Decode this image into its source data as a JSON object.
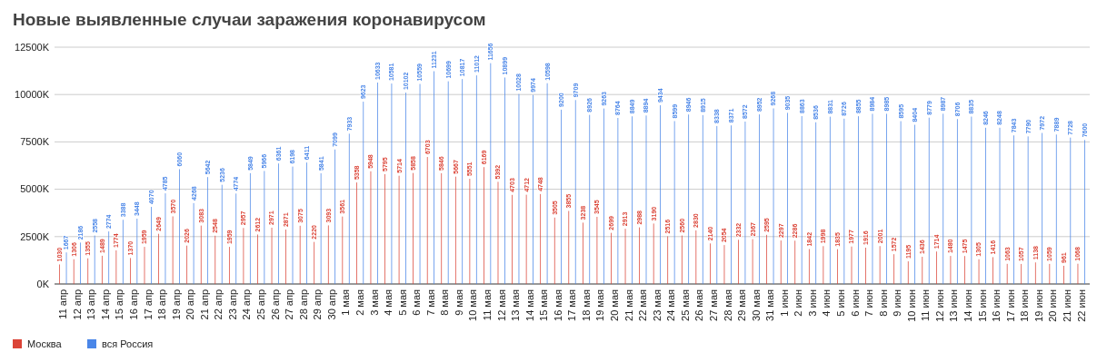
{
  "chart_data": {
    "type": "bar",
    "title": "Новые выявленные случаи заражения коронавирусом",
    "categories": [
      "11 апр",
      "12 апр",
      "13 апр",
      "14 апр",
      "15 апр",
      "16 апр",
      "17 апр",
      "18 апр",
      "19 апр",
      "20 апр",
      "21 апр",
      "22 апр",
      "23 апр",
      "24 апр",
      "25 апр",
      "26 апр",
      "27 апр",
      "28 апр",
      "29 апр",
      "30 апр",
      "1 мая",
      "2 мая",
      "3 мая",
      "4 мая",
      "5 мая",
      "6 мая",
      "7 мая",
      "8 мая",
      "9 мая",
      "10 мая",
      "11 мая",
      "12 мая",
      "13 мая",
      "14 мая",
      "15 мая",
      "16 мая",
      "17 мая",
      "18 мая",
      "19 мая",
      "20 мая",
      "21 мая",
      "22 мая",
      "23 мая",
      "24 мая",
      "25 мая",
      "26 мая",
      "27 мая",
      "28 мая",
      "29 мая",
      "30 мая",
      "31 мая",
      "1 июн",
      "2 июн",
      "3 июн",
      "4 июн",
      "5 июн",
      "6 июн",
      "7 июн",
      "8 июн",
      "9 июн",
      "10 июн",
      "11 июн",
      "12 июн",
      "13 июн",
      "14 июн",
      "15 июн",
      "16 июн",
      "17 июн",
      "18 июн",
      "19 июн",
      "20 июн",
      "21 июн",
      "22 июн"
    ],
    "series": [
      {
        "name": "Москва",
        "color": "#db4437",
        "values": [
          1030,
          1306,
          1355,
          1489,
          1774,
          1370,
          1959,
          2649,
          3570,
          2026,
          3083,
          2548,
          1959,
          2957,
          2612,
          2971,
          2871,
          3075,
          2220,
          3093,
          3561,
          5358,
          5948,
          5795,
          5714,
          5858,
          6703,
          5846,
          5667,
          5551,
          6169,
          5392,
          4703,
          4712,
          4748,
          3505,
          3855,
          3238,
          3545,
          2699,
          2913,
          2988,
          3190,
          2516,
          2560,
          2830,
          2140,
          2054,
          2332,
          2367,
          2595,
          2297,
          2286,
          1842,
          1998,
          1835,
          1977,
          1916,
          2001,
          1572,
          1195,
          1436,
          1714,
          1480,
          1475,
          1305,
          1416,
          1063,
          1057,
          1138,
          1059,
          961,
          1068
        ]
      },
      {
        "name": "вся Россия",
        "color": "#4a86e8",
        "values": [
          1667,
          2186,
          2558,
          2774,
          3388,
          3448,
          4070,
          4785,
          6060,
          4268,
          5642,
          5236,
          4774,
          5849,
          5966,
          6361,
          6198,
          6411,
          5841,
          7099,
          7933,
          9623,
          10633,
          10581,
          10102,
          10559,
          11231,
          10699,
          10817,
          11012,
          11656,
          10899,
          10028,
          9974,
          10598,
          9200,
          9709,
          8926,
          9263,
          8764,
          8849,
          8894,
          9434,
          8599,
          8946,
          8915,
          8338,
          8371,
          8572,
          8952,
          9268,
          9035,
          8863,
          8536,
          8831,
          8726,
          8855,
          8984,
          8985,
          8595,
          8404,
          8779,
          8987,
          8706,
          8835,
          8246,
          8248,
          7843,
          7790,
          7972,
          7889,
          7728,
          7600
        ]
      }
    ],
    "ylim": [
      0,
      12500
    ],
    "yticks": [
      {
        "value": 0,
        "label": "0K"
      },
      {
        "value": 2500,
        "label": "2500K"
      },
      {
        "value": 5000,
        "label": "5000K"
      },
      {
        "value": 7500,
        "label": "7500K"
      },
      {
        "value": 10000,
        "label": "10000K"
      },
      {
        "value": 12500,
        "label": "12500K"
      }
    ],
    "grid": "y",
    "legend": "bottom left",
    "data_labels": true
  }
}
